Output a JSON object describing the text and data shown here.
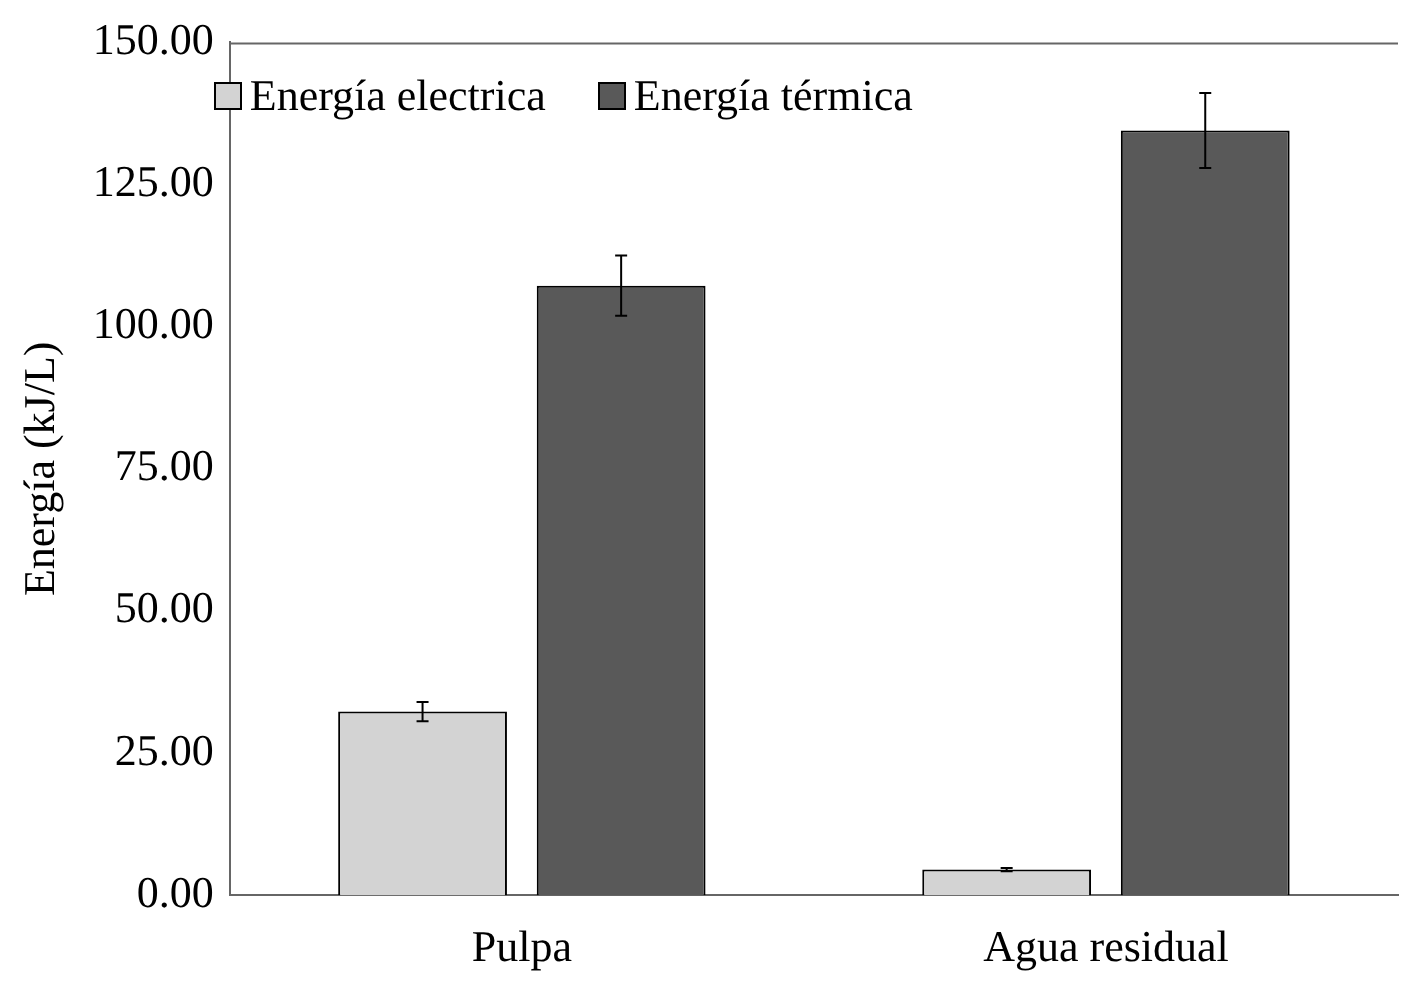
{
  "chart_data": {
    "type": "bar",
    "ylabel": "Energía (kJ/L)",
    "categories": [
      "Pulpa",
      "Agua residual"
    ],
    "series": [
      {
        "name": "Energía electrica",
        "color": "#d3d3d3",
        "values": [
          32.3,
          4.5
        ],
        "errors": [
          1.7,
          0.3
        ]
      },
      {
        "name": "Energía térmica",
        "color": "#595959",
        "values": [
          107.2,
          134.5
        ],
        "errors": [
          5.3,
          6.6
        ]
      }
    ],
    "ylim": [
      0,
      150
    ],
    "yticks": [
      {
        "value": 0,
        "label": "0.00"
      },
      {
        "value": 25,
        "label": "25.00"
      },
      {
        "value": 50,
        "label": "50.00"
      },
      {
        "value": 75,
        "label": "75.00"
      },
      {
        "value": 100,
        "label": "100.00"
      },
      {
        "value": 125,
        "label": "125.00"
      },
      {
        "value": 150,
        "label": "150.00"
      }
    ],
    "grid": false,
    "legend": "top left"
  }
}
